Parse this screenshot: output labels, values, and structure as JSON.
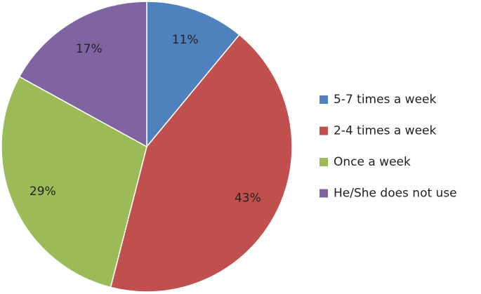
{
  "chart_data": {
    "type": "pie",
    "categories": [
      "5-7 times a week",
      "2-4 times a week",
      "Once a week",
      "He/She does not use"
    ],
    "values": [
      11,
      43,
      29,
      17
    ],
    "value_labels": [
      "11%",
      "43%",
      "29%",
      "17%"
    ],
    "colors": [
      "#4f81bd",
      "#c0504d",
      "#9bbb59",
      "#8064a2"
    ],
    "legend": "right"
  }
}
